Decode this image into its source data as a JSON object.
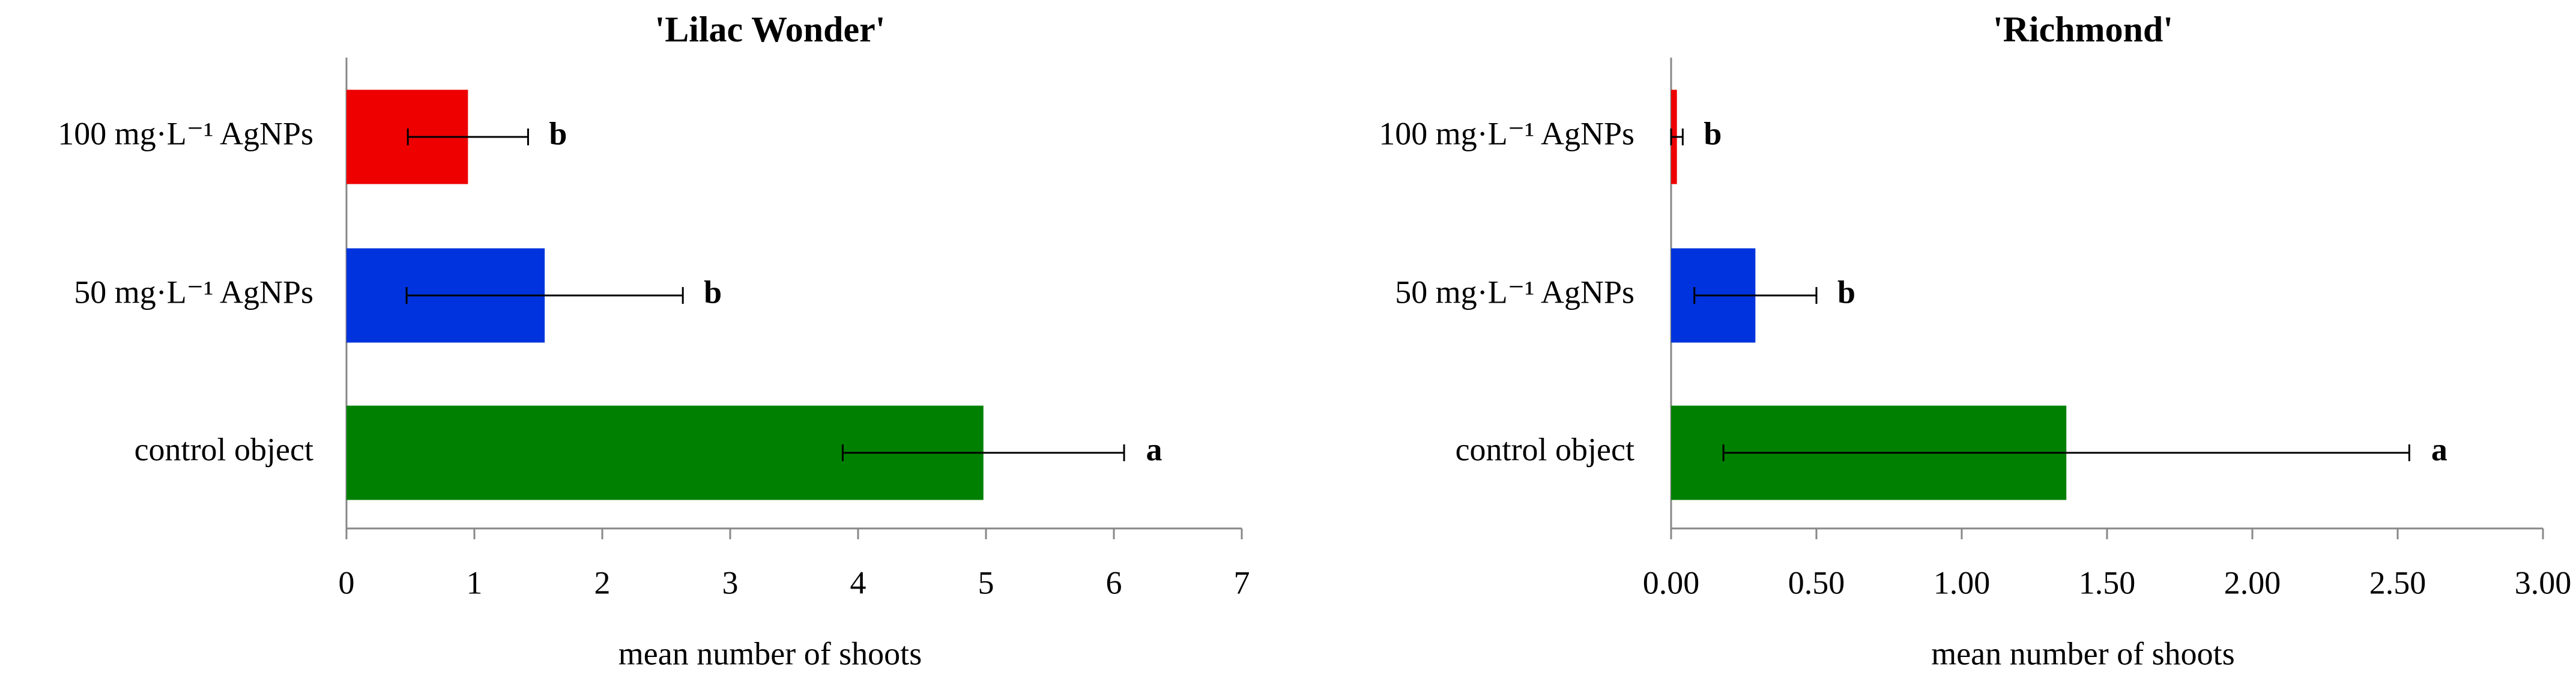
{
  "chart_data": [
    {
      "type": "bar",
      "orientation": "horizontal",
      "title": "'Lilac Wonder'",
      "categories": [
        "100 mg·L⁻¹  AgNPs",
        "50 mg·L⁻¹  AgNPs",
        "control object"
      ],
      "values": [
        0.95,
        1.55,
        4.98
      ],
      "errors": [
        0.47,
        1.08,
        1.1
      ],
      "colors": [
        "#ee0000",
        "#0033dd",
        "#008000"
      ],
      "annotations": [
        "b",
        "b",
        "a"
      ],
      "xlabel": "mean number of shoots",
      "xlim": [
        0,
        7
      ],
      "xticks": [
        0,
        1,
        2,
        3,
        4,
        5,
        6,
        7
      ]
    },
    {
      "type": "bar",
      "orientation": "horizontal",
      "title": "'Richmond'",
      "categories": [
        "100 mg·L⁻¹  AgNPs",
        "50 mg·L⁻¹  AgNPs",
        "control object"
      ],
      "values": [
        0.02,
        0.29,
        1.36
      ],
      "errors": [
        0.02,
        0.21,
        1.18
      ],
      "colors": [
        "#ee0000",
        "#0033dd",
        "#008000"
      ],
      "annotations": [
        "b",
        "b",
        "a"
      ],
      "xlabel": "mean number of shoots",
      "xlim": [
        0,
        3
      ],
      "xticks": [
        {
          "value": 0,
          "label": "0.00"
        },
        {
          "value": 0.5,
          "label": "0.50"
        },
        {
          "value": 1,
          "label": "1.00"
        },
        {
          "value": 1.5,
          "label": "1.50"
        },
        {
          "value": 2,
          "label": "2.00"
        },
        {
          "value": 2.5,
          "label": "2.50"
        },
        {
          "value": 3,
          "label": "3.00"
        }
      ]
    }
  ]
}
